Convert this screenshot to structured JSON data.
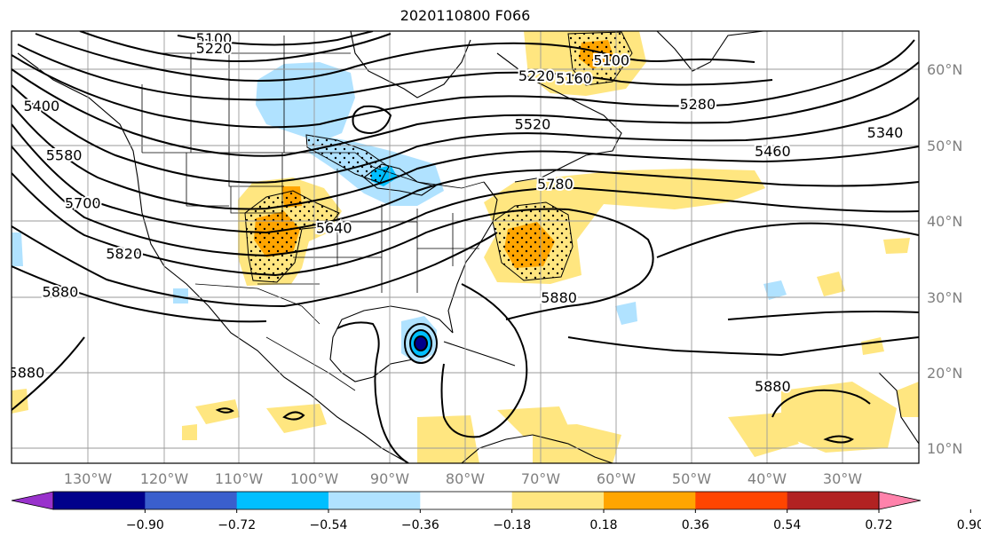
{
  "title": "2020110800 F066",
  "map": {
    "projection": "PlateCarree",
    "lon_range": [
      -138,
      -17
    ],
    "lat_range": [
      8,
      65
    ],
    "lon_ticks": [
      "130°W",
      "120°W",
      "110°W",
      "100°W",
      "90°W",
      "80°W",
      "70°W",
      "60°W",
      "50°W",
      "40°W",
      "30°W"
    ],
    "lat_ticks": [
      "60°N",
      "50°N",
      "40°N",
      "30°N",
      "20°N",
      "10°N"
    ],
    "gridlines": true,
    "contour_field": "500 hPa geopotential height",
    "contour_labels": [
      {
        "text": "5100",
        "lon": -111,
        "lat": 63.9
      },
      {
        "text": "5220",
        "lon": -111,
        "lat": 62.6
      },
      {
        "text": "5100",
        "lon": -58,
        "lat": 61
      },
      {
        "text": "5160",
        "lon": -63,
        "lat": 58.6
      },
      {
        "text": "5220",
        "lon": -68,
        "lat": 59
      },
      {
        "text": "5280",
        "lon": -46.5,
        "lat": 55.2
      },
      {
        "text": "5340",
        "lon": -21.5,
        "lat": 51.5
      },
      {
        "text": "5400",
        "lon": -134,
        "lat": 55
      },
      {
        "text": "5460",
        "lon": -36.5,
        "lat": 49
      },
      {
        "text": "5520",
        "lon": -68.5,
        "lat": 52.6
      },
      {
        "text": "5580",
        "lon": -131,
        "lat": 48.5
      },
      {
        "text": "5640",
        "lon": -95,
        "lat": 38.9
      },
      {
        "text": "5700",
        "lon": -128.5,
        "lat": 42.2
      },
      {
        "text": "5780",
        "lon": -65.5,
        "lat": 44.7
      },
      {
        "text": "5820",
        "lon": -123,
        "lat": 35.5
      },
      {
        "text": "5880",
        "lon": -131.5,
        "lat": 30.5
      },
      {
        "text": "5880",
        "lon": -136,
        "lat": 19.8
      },
      {
        "text": "5880",
        "lon": -65,
        "lat": 29.7
      },
      {
        "text": "5880",
        "lon": -36.5,
        "lat": 18
      }
    ],
    "shading_field": "anomaly",
    "stippling": "dotted hatching over significant regions"
  },
  "colorbar": {
    "ticks": [
      "−0.90",
      "−0.72",
      "−0.54",
      "−0.36",
      "−0.18",
      "0.18",
      "0.36",
      "0.54",
      "0.72",
      "0.90"
    ],
    "colors": [
      "#9932CC",
      "#00008B",
      "#3A5FCD",
      "#00BFFF",
      "#B0E2FF",
      "#FFFFFF",
      "#FFE680",
      "#FFA500",
      "#FF4500",
      "#B22222",
      "#FF82AB"
    ],
    "extend": "both"
  }
}
